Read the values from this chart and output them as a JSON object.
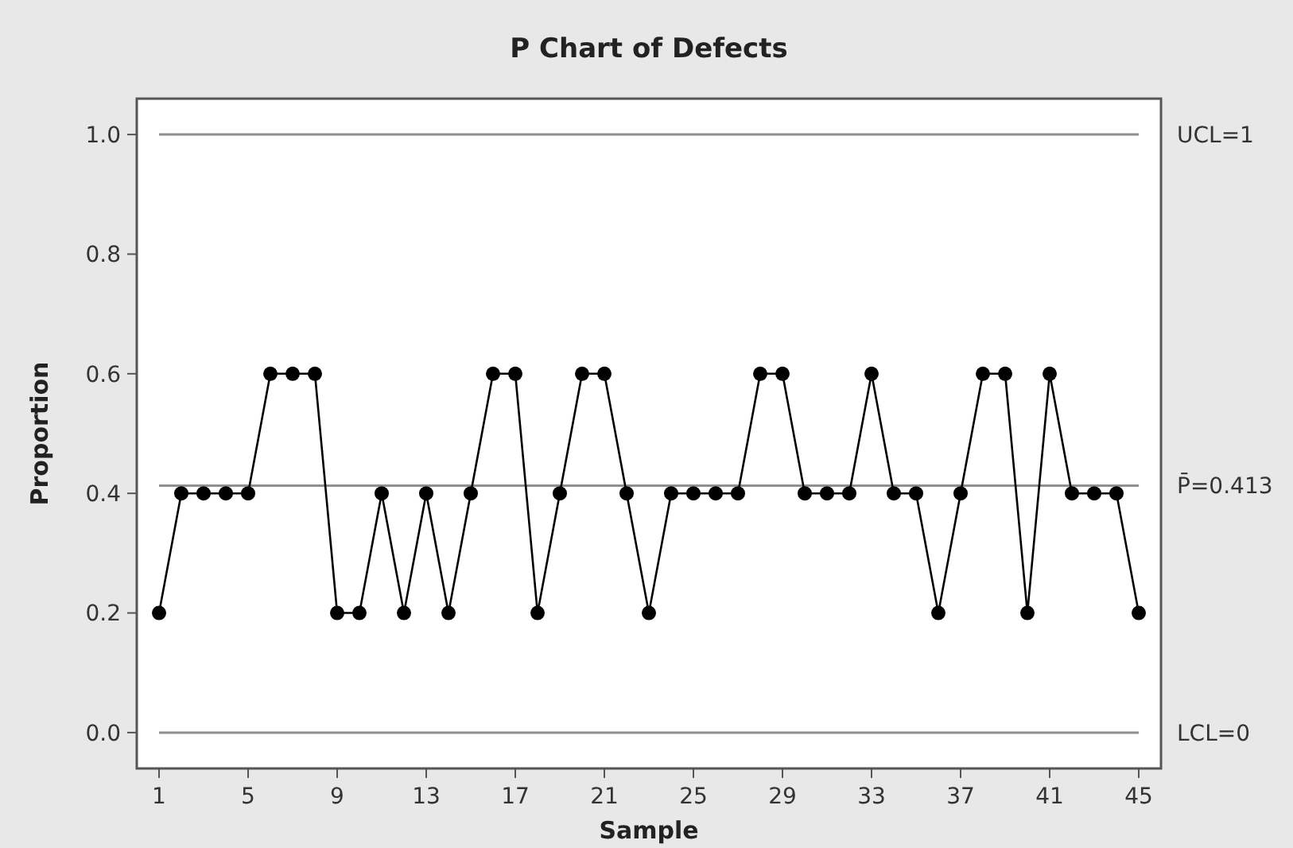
{
  "chart_data": {
    "type": "line",
    "title": "P Chart of Defects",
    "xlabel": "Sample",
    "ylabel": "Proportion",
    "x": [
      1,
      2,
      3,
      4,
      5,
      6,
      7,
      8,
      9,
      10,
      11,
      12,
      13,
      14,
      15,
      16,
      17,
      18,
      19,
      20,
      21,
      22,
      23,
      24,
      25,
      26,
      27,
      28,
      29,
      30,
      31,
      32,
      33,
      34,
      35,
      36,
      37,
      38,
      39,
      40,
      41,
      42,
      43,
      44,
      45
    ],
    "series": [
      {
        "color": "#000000",
        "values": [
          0.2,
          0.4,
          0.4,
          0.4,
          0.4,
          0.6,
          0.6,
          0.6,
          0.2,
          0.2,
          0.4,
          0.2,
          0.4,
          0.2,
          0.4,
          0.6,
          0.6,
          0.2,
          0.4,
          0.6,
          0.6,
          0.4,
          0.2,
          0.4,
          0.4,
          0.4,
          0.4,
          0.6,
          0.6,
          0.4,
          0.4,
          0.4,
          0.6,
          0.4,
          0.4,
          0.2,
          0.4,
          0.6,
          0.6,
          0.2,
          0.6,
          0.4,
          0.4,
          0.4,
          0.2
        ]
      }
    ],
    "xlim": [
      0,
      46
    ],
    "xticks": [
      1,
      5,
      9,
      13,
      17,
      21,
      25,
      29,
      33,
      37,
      41,
      45
    ],
    "ylim": [
      -0.06,
      1.06
    ],
    "yticks": [
      {
        "value": 0,
        "label": "0.0"
      },
      {
        "value": 0.2,
        "label": "0.2"
      },
      {
        "value": 0.4,
        "label": "0.4"
      },
      {
        "value": 0.6,
        "label": "0.6"
      },
      {
        "value": 0.8,
        "label": "0.8"
      },
      {
        "value": 1,
        "label": "1.0"
      }
    ],
    "ref_lines": [
      {
        "axis": "y",
        "value": 1,
        "label": "UCL=1",
        "color": "#909090"
      },
      {
        "axis": "y",
        "value": 0.413,
        "label": "P̄=0.413",
        "color": "#909090"
      },
      {
        "axis": "y",
        "value": 0,
        "label": "LCL=0",
        "color": "#909090"
      }
    ],
    "marker": "circle",
    "line_style": "solid"
  }
}
